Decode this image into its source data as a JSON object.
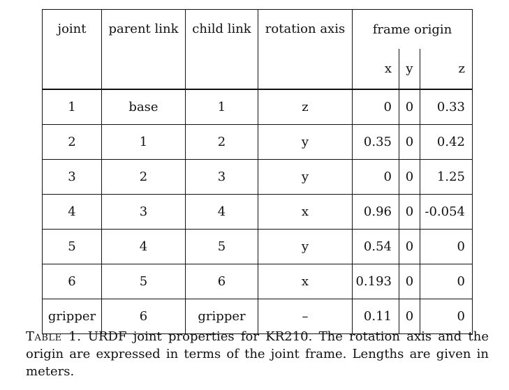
{
  "table": {
    "headers": {
      "joint": "joint",
      "parent_link": "parent link",
      "child_link": "child link",
      "rotation_axis": "rotation axis",
      "frame_origin": "frame origin",
      "x": "x",
      "y": "y",
      "z": "z"
    },
    "rows": [
      {
        "joint": "1",
        "parent": "base",
        "child": "1",
        "axis": "z",
        "x": "0",
        "y": "0",
        "z": "0.33"
      },
      {
        "joint": "2",
        "parent": "1",
        "child": "2",
        "axis": "y",
        "x": "0.35",
        "y": "0",
        "z": "0.42"
      },
      {
        "joint": "3",
        "parent": "2",
        "child": "3",
        "axis": "y",
        "x": "0",
        "y": "0",
        "z": "1.25"
      },
      {
        "joint": "4",
        "parent": "3",
        "child": "4",
        "axis": "x",
        "x": "0.96",
        "y": "0",
        "z": "-0.054"
      },
      {
        "joint": "5",
        "parent": "4",
        "child": "5",
        "axis": "y",
        "x": "0.54",
        "y": "0",
        "z": "0"
      },
      {
        "joint": "6",
        "parent": "5",
        "child": "6",
        "axis": "x",
        "x": "0.193",
        "y": "0",
        "z": "0"
      },
      {
        "joint": "gripper",
        "parent": "6",
        "child": "gripper",
        "axis": "–",
        "x": "0.11",
        "y": "0",
        "z": "0"
      }
    ]
  },
  "caption": {
    "label": "Table 1.",
    "text": "URDF joint properties for KR210. The rotation axis and the origin are expressed in terms of the joint frame. Lengths are given in meters."
  }
}
